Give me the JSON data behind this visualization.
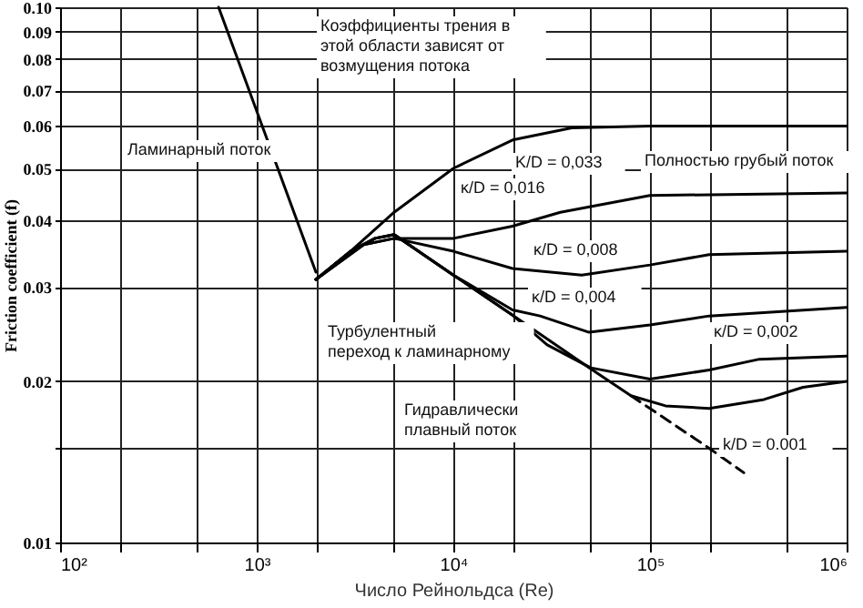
{
  "chart_data": {
    "type": "line",
    "xlabel": "Число Рейнольдса (Re)",
    "ylabel": "Friction coefficient (f)",
    "log": "xy",
    "grid": true,
    "marker": "none",
    "xlim": [
      100,
      1000000
    ],
    "ylim": [
      0.01,
      0.1
    ],
    "xticks": [
      {
        "value": 100,
        "label": "10²"
      },
      {
        "value": 200,
        "label": null
      },
      {
        "value": 500,
        "label": null
      },
      {
        "value": 1000,
        "label": "10³"
      },
      {
        "value": 2000,
        "label": null
      },
      {
        "value": 5000,
        "label": null
      },
      {
        "value": 10000,
        "label": "10⁴"
      },
      {
        "value": 20000,
        "label": null
      },
      {
        "value": 50000,
        "label": null
      },
      {
        "value": 100000,
        "label": "10⁵"
      },
      {
        "value": 200000,
        "label": null
      },
      {
        "value": 500000,
        "label": null
      },
      {
        "value": 1000000,
        "label": "10⁶"
      }
    ],
    "yticks": [
      0.01,
      {
        "value": 0.015,
        "label": null
      },
      0.02,
      0.03,
      0.04,
      0.05,
      0.06,
      0.07,
      0.08,
      0.09,
      {
        "value": 0.1,
        "label": "0.10"
      }
    ],
    "series": [
      {
        "color": "#000000",
        "line_style": "solid",
        "x": [
          640,
          1000,
          2000
        ],
        "values": [
          0.1,
          0.064,
          0.032
        ]
      },
      {
        "color": "#000000",
        "line_style": "solid",
        "x": [
          2000,
          3000,
          5000,
          10000,
          20000,
          40000,
          100000,
          1000000
        ],
        "values": [
          0.031,
          0.035,
          0.0414,
          0.05,
          0.0565,
          0.0595,
          0.06,
          0.06
        ]
      },
      {
        "color": "#000000",
        "line_style": "solid",
        "x": [
          2000,
          3500,
          5000,
          10000,
          20000,
          35000,
          100000,
          1000000
        ],
        "values": [
          0.031,
          0.036,
          0.037,
          0.037,
          0.039,
          0.0414,
          0.0445,
          0.045
        ]
      },
      {
        "color": "#000000",
        "line_style": "solid",
        "x": [
          2000,
          3500,
          5000,
          10000,
          20000,
          45000,
          100000,
          200000,
          1000000
        ],
        "values": [
          0.031,
          0.036,
          0.037,
          0.035,
          0.0325,
          0.0316,
          0.033,
          0.0345,
          0.035
        ]
      },
      {
        "color": "#000000",
        "line_style": "solid",
        "x": [
          2000,
          3000,
          4000,
          5000,
          10000,
          20000,
          27600,
          49000,
          100000,
          200000,
          1000000
        ],
        "values": [
          0.031,
          0.035,
          0.037,
          0.0376,
          0.0316,
          0.0272,
          0.0265,
          0.0247,
          0.0255,
          0.0265,
          0.0275
        ]
      },
      {
        "color": "#000000",
        "line_style": "solid",
        "x": [
          2000,
          3000,
          4000,
          5000,
          10000,
          20000,
          30000,
          50000,
          100000,
          200000,
          360000,
          1000000
        ],
        "values": [
          0.031,
          0.035,
          0.037,
          0.0376,
          0.0316,
          0.0266,
          0.0234,
          0.0212,
          0.0202,
          0.021,
          0.022,
          0.0223
        ]
      },
      {
        "color": "#000000",
        "line_style": "solid",
        "x": [
          2000,
          3000,
          4000,
          5000,
          10000,
          20000,
          50000,
          80000,
          120000,
          200000,
          380000,
          600000,
          1000000
        ],
        "values": [
          0.031,
          0.035,
          0.037,
          0.0376,
          0.0316,
          0.0266,
          0.0211,
          0.0188,
          0.018,
          0.0178,
          0.0185,
          0.0195,
          0.02
        ]
      },
      {
        "color": "#000000",
        "line_style": "dashed",
        "x": [
          80000,
          100000,
          200000,
          300000
        ],
        "values": [
          0.0188,
          0.0178,
          0.015,
          0.0135
        ]
      }
    ],
    "annotations": [
      "Ламинарный поток",
      "Коэффициенты трения в\nэтой области зависят от\nвозмущения потока",
      "K/D = 0,033",
      "Полностью грубый поток",
      "κ/D = 0,016",
      "κ/D = 0,008",
      "κ/D = 0,004",
      "Турбулентный\nпереход к ламинарному",
      "κ/D = 0,002",
      "Гидравлически\nплавный поток",
      "k/D = 0.001"
    ]
  }
}
